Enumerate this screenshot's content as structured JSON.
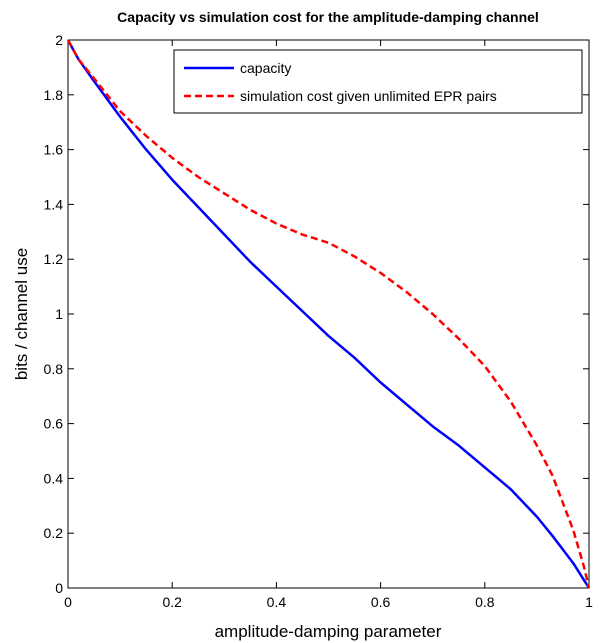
{
  "chart_data": {
    "type": "line",
    "title": "Capacity vs simulation cost for the amplitude-damping channel",
    "xlabel": "amplitude-damping parameter",
    "ylabel": "bits / channel use",
    "xlim": [
      0,
      1
    ],
    "ylim": [
      0,
      2
    ],
    "xticks": [
      "0",
      "0.2",
      "0.4",
      "0.6",
      "0.8",
      "1"
    ],
    "yticks": [
      "0",
      "0.2",
      "0.4",
      "0.6",
      "0.8",
      "1",
      "1.2",
      "1.4",
      "1.6",
      "1.8",
      "2"
    ],
    "grid": false,
    "legend": "top-right",
    "series": [
      {
        "name": "capacity",
        "color": "#0000ff",
        "style": "solid",
        "x": [
          0,
          0.02,
          0.05,
          0.1,
          0.15,
          0.2,
          0.25,
          0.3,
          0.35,
          0.4,
          0.45,
          0.5,
          0.55,
          0.6,
          0.65,
          0.7,
          0.75,
          0.8,
          0.85,
          0.9,
          0.93,
          0.95,
          0.97,
          0.99,
          1.0
        ],
        "y": [
          2.0,
          1.93,
          1.85,
          1.72,
          1.6,
          1.49,
          1.39,
          1.29,
          1.19,
          1.1,
          1.01,
          0.92,
          0.84,
          0.75,
          0.67,
          0.59,
          0.52,
          0.44,
          0.36,
          0.26,
          0.19,
          0.14,
          0.09,
          0.03,
          0.0
        ]
      },
      {
        "name": "simulation cost given unlimited EPR pairs",
        "color": "#ff0000",
        "style": "dashed",
        "x": [
          0,
          0.02,
          0.05,
          0.1,
          0.15,
          0.2,
          0.25,
          0.3,
          0.35,
          0.4,
          0.45,
          0.5,
          0.55,
          0.6,
          0.65,
          0.7,
          0.75,
          0.8,
          0.85,
          0.9,
          0.93,
          0.95,
          0.97,
          0.99,
          1.0
        ],
        "y": [
          2.0,
          1.93,
          1.86,
          1.74,
          1.65,
          1.57,
          1.5,
          1.44,
          1.38,
          1.33,
          1.29,
          1.26,
          1.21,
          1.15,
          1.08,
          1.0,
          0.91,
          0.81,
          0.68,
          0.52,
          0.41,
          0.31,
          0.21,
          0.08,
          0.0
        ]
      }
    ]
  }
}
